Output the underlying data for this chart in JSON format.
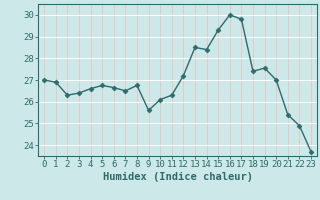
{
  "x": [
    0,
    1,
    2,
    3,
    4,
    5,
    6,
    7,
    8,
    9,
    10,
    11,
    12,
    13,
    14,
    15,
    16,
    17,
    18,
    19,
    20,
    21,
    22,
    23
  ],
  "y": [
    27.0,
    26.9,
    26.3,
    26.4,
    26.6,
    26.75,
    26.65,
    26.5,
    26.75,
    25.6,
    26.1,
    26.3,
    27.2,
    28.5,
    28.4,
    29.3,
    30.0,
    29.8,
    27.4,
    27.55,
    27.0,
    25.4,
    24.9,
    23.7
  ],
  "line_color": "#2e6b6b",
  "marker": "D",
  "marker_size": 2.5,
  "bg_color": "#cce8e8",
  "grid_color_h": "#ffffff",
  "grid_color_v": "#e8c8c8",
  "xlabel": "Humidex (Indice chaleur)",
  "ylim": [
    23.5,
    30.5
  ],
  "xlim": [
    -0.5,
    23.5
  ],
  "yticks": [
    24,
    25,
    26,
    27,
    28,
    29,
    30
  ],
  "xticks": [
    0,
    1,
    2,
    3,
    4,
    5,
    6,
    7,
    8,
    9,
    10,
    11,
    12,
    13,
    14,
    15,
    16,
    17,
    18,
    19,
    20,
    21,
    22,
    23
  ],
  "tick_fontsize": 6.5,
  "label_fontsize": 7.5,
  "tick_color": "#2e6b6b",
  "axis_color": "#2e6b6b"
}
